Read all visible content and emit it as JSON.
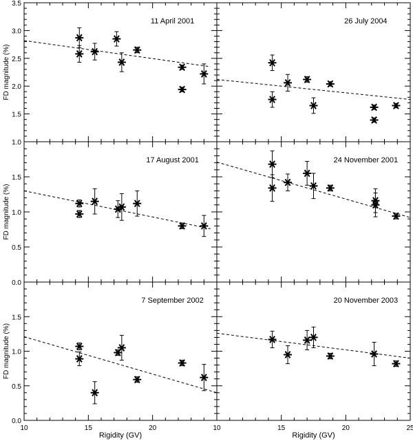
{
  "chart_data": [
    {
      "type": "scatter",
      "title": "11 April 2001",
      "xlabel": "",
      "ylabel": "FD magnitude (%)",
      "xlim": [
        10,
        25
      ],
      "ylim": [
        1.0,
        3.5
      ],
      "yticks": [
        "1.0",
        "1.5",
        "2.0",
        "2.5",
        "3.0",
        "3.5"
      ],
      "xticks": [],
      "points": [
        {
          "x": 14.3,
          "y": 2.87,
          "err": 0.18
        },
        {
          "x": 14.3,
          "y": 2.58,
          "err": 0.15
        },
        {
          "x": 15.5,
          "y": 2.62,
          "err": 0.15
        },
        {
          "x": 17.2,
          "y": 2.85,
          "err": 0.13
        },
        {
          "x": 17.6,
          "y": 2.43,
          "err": 0.17
        },
        {
          "x": 18.8,
          "y": 2.65,
          "err": 0.05
        },
        {
          "x": 22.3,
          "y": 2.34,
          "err": 0.04
        },
        {
          "x": 22.3,
          "y": 1.94,
          "err": 0.04
        },
        {
          "x": 24.0,
          "y": 2.22,
          "err": 0.18
        }
      ],
      "fit": {
        "x": [
          10,
          24.5
        ],
        "y": [
          2.82,
          2.35
        ]
      }
    },
    {
      "type": "scatter",
      "title": "26 July 2004",
      "xlabel": "",
      "ylabel": "",
      "xlim": [
        10,
        25
      ],
      "ylim": [
        1.0,
        3.5
      ],
      "yticks": [],
      "xticks": [],
      "points": [
        {
          "x": 14.3,
          "y": 2.42,
          "err": 0.14
        },
        {
          "x": 14.3,
          "y": 1.76,
          "err": 0.14
        },
        {
          "x": 15.5,
          "y": 2.06,
          "err": 0.15
        },
        {
          "x": 17.0,
          "y": 2.12,
          "err": 0.05
        },
        {
          "x": 17.5,
          "y": 1.65,
          "err": 0.14
        },
        {
          "x": 18.8,
          "y": 2.04,
          "err": 0.04
        },
        {
          "x": 22.2,
          "y": 1.62,
          "err": 0.04
        },
        {
          "x": 22.2,
          "y": 1.39,
          "err": 0.04
        },
        {
          "x": 23.9,
          "y": 1.65,
          "err": 0.04
        }
      ],
      "fit": {
        "x": [
          10,
          25
        ],
        "y": [
          2.12,
          1.76
        ]
      }
    },
    {
      "type": "scatter",
      "title": "17 August 2001",
      "xlabel": "",
      "ylabel": "FD magnitude (%)",
      "xlim": [
        10,
        25
      ],
      "ylim": [
        0.0,
        2.0
      ],
      "yticks": [
        "0.0",
        "0.5",
        "1.0",
        "1.5"
      ],
      "xticks": [],
      "points": [
        {
          "x": 14.3,
          "y": 1.12,
          "err": 0.05
        },
        {
          "x": 14.3,
          "y": 0.97,
          "err": 0.05
        },
        {
          "x": 15.5,
          "y": 1.15,
          "err": 0.18
        },
        {
          "x": 17.3,
          "y": 1.04,
          "err": 0.12
        },
        {
          "x": 17.6,
          "y": 1.07,
          "err": 0.19
        },
        {
          "x": 18.8,
          "y": 1.12,
          "err": 0.18
        },
        {
          "x": 22.3,
          "y": 0.8,
          "err": 0.04
        },
        {
          "x": 24.0,
          "y": 0.8,
          "err": 0.15
        }
      ],
      "fit": {
        "x": [
          10,
          24.5
        ],
        "y": [
          1.3,
          0.76
        ]
      }
    },
    {
      "type": "scatter",
      "title": "24 November 2001",
      "xlabel": "",
      "ylabel": "",
      "xlim": [
        10,
        25
      ],
      "ylim": [
        0.0,
        2.0
      ],
      "yticks": [],
      "xticks": [],
      "points": [
        {
          "x": 14.3,
          "y": 1.68,
          "err": 0.19
        },
        {
          "x": 14.3,
          "y": 1.34,
          "err": 0.19
        },
        {
          "x": 15.5,
          "y": 1.42,
          "err": 0.12
        },
        {
          "x": 17.0,
          "y": 1.55,
          "err": 0.17
        },
        {
          "x": 17.5,
          "y": 1.37,
          "err": 0.18
        },
        {
          "x": 18.8,
          "y": 1.34,
          "err": 0.04
        },
        {
          "x": 22.3,
          "y": 1.16,
          "err": 0.17
        },
        {
          "x": 22.3,
          "y": 1.1,
          "err": 0.17
        },
        {
          "x": 23.9,
          "y": 0.94,
          "err": 0.04
        }
      ],
      "fit": {
        "x": [
          10,
          25
        ],
        "y": [
          1.71,
          0.92
        ]
      }
    },
    {
      "type": "scatter",
      "title": "7 September 2002",
      "xlabel": "Rigidity (GV)",
      "ylabel": "FD magnitude (%)",
      "xlim": [
        10,
        25
      ],
      "ylim": [
        0.0,
        2.0
      ],
      "yticks": [
        "0.0",
        "0.5",
        "1.0",
        "1.5"
      ],
      "xticks": [
        "10",
        "15",
        "20"
      ],
      "points": [
        {
          "x": 14.3,
          "y": 1.07,
          "err": 0.05
        },
        {
          "x": 14.3,
          "y": 0.89,
          "err": 0.1
        },
        {
          "x": 15.5,
          "y": 0.4,
          "err": 0.16
        },
        {
          "x": 17.3,
          "y": 0.98,
          "err": 0.04
        },
        {
          "x": 17.6,
          "y": 1.05,
          "err": 0.18
        },
        {
          "x": 18.8,
          "y": 0.59,
          "err": 0.04
        },
        {
          "x": 22.3,
          "y": 0.83,
          "err": 0.04
        },
        {
          "x": 24.0,
          "y": 0.62,
          "err": 0.19
        }
      ],
      "fit": {
        "x": [
          10,
          25
        ],
        "y": [
          1.21,
          0.4
        ]
      }
    },
    {
      "type": "scatter",
      "title": "20 November 2003",
      "xlabel": "Rigidity (GV)",
      "ylabel": "",
      "xlim": [
        10,
        25
      ],
      "ylim": [
        0.0,
        2.0
      ],
      "yticks": [],
      "xticks": [
        "10",
        "15",
        "20",
        "25"
      ],
      "points": [
        {
          "x": 14.3,
          "y": 1.17,
          "err": 0.12
        },
        {
          "x": 15.5,
          "y": 0.95,
          "err": 0.13
        },
        {
          "x": 17.0,
          "y": 1.16,
          "err": 0.14
        },
        {
          "x": 17.5,
          "y": 1.2,
          "err": 0.15
        },
        {
          "x": 18.8,
          "y": 0.93,
          "err": 0.04
        },
        {
          "x": 22.2,
          "y": 0.96,
          "err": 0.17
        },
        {
          "x": 23.9,
          "y": 0.82,
          "err": 0.04
        }
      ],
      "fit": {
        "x": [
          10,
          25
        ],
        "y": [
          1.26,
          0.9
        ]
      }
    }
  ]
}
